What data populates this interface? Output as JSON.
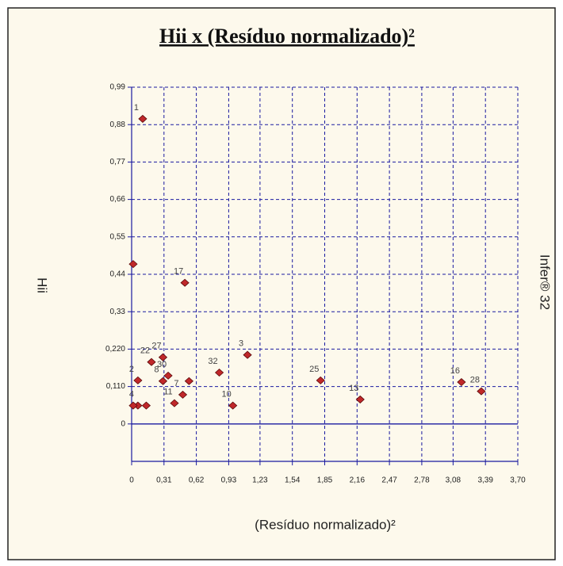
{
  "chart_data": {
    "type": "scatter",
    "title": "Hii x (Resíduo normalizado)²",
    "xlabel": "(Resíduo normalizado)²",
    "ylabel": "Hii",
    "side_label": "Infer® 32",
    "color": "#c0282a",
    "grid": true,
    "xlim": [
      0,
      3.7
    ],
    "ylim": [
      -0.11,
      0.99
    ],
    "xticks": [
      0,
      {
        "value": 0.31,
        "label": "0,31"
      },
      {
        "value": 0.62,
        "label": "0,62"
      },
      {
        "value": 0.93,
        "label": "0,93"
      },
      {
        "value": 1.23,
        "label": "1,23"
      },
      {
        "value": 1.54,
        "label": "1,54"
      },
      {
        "value": 1.85,
        "label": "1,85"
      },
      {
        "value": 2.16,
        "label": "2,16"
      },
      {
        "value": 2.47,
        "label": "2,47"
      },
      {
        "value": 2.78,
        "label": "2,78"
      },
      {
        "value": 3.08,
        "label": "3,08"
      },
      {
        "value": 3.39,
        "label": "3,39"
      },
      {
        "value": 3.7,
        "label": "3,70"
      }
    ],
    "yticks": [
      0,
      {
        "value": 0.11,
        "label": "0,110"
      },
      {
        "value": 0.22,
        "label": "0,220"
      },
      {
        "value": 0.33,
        "label": "0,33"
      },
      {
        "value": 0.44,
        "label": "0,44"
      },
      {
        "value": 0.55,
        "label": "0,55"
      },
      {
        "value": 0.66,
        "label": "0,66"
      },
      {
        "value": 0.77,
        "label": "0,77"
      },
      {
        "value": 0.88,
        "label": "0,88"
      },
      {
        "value": 0.99,
        "label": "0,99"
      }
    ],
    "x": [
      0.106,
      0.015,
      0.51,
      1.11,
      0.3,
      0.06,
      0.19,
      0.3,
      0.35,
      0.55,
      0.49,
      0.41,
      0.84,
      0.97,
      0.06,
      0.14,
      0.015,
      1.81,
      2.19,
      3.16,
      3.35
    ],
    "values": [
      0.897,
      0.47,
      0.415,
      0.203,
      0.196,
      0.128,
      0.182,
      0.126,
      0.142,
      0.126,
      0.086,
      0.061,
      0.151,
      0.054,
      0.054,
      0.054,
      0.054,
      0.128,
      0.072,
      0.123,
      0.096
    ],
    "labels": [
      "1",
      null,
      "17",
      "3",
      "27",
      "2",
      "22",
      "8",
      "30",
      null,
      "7",
      "11",
      "32",
      "10",
      "4",
      null,
      null,
      "25",
      "13",
      "16",
      "28"
    ]
  }
}
